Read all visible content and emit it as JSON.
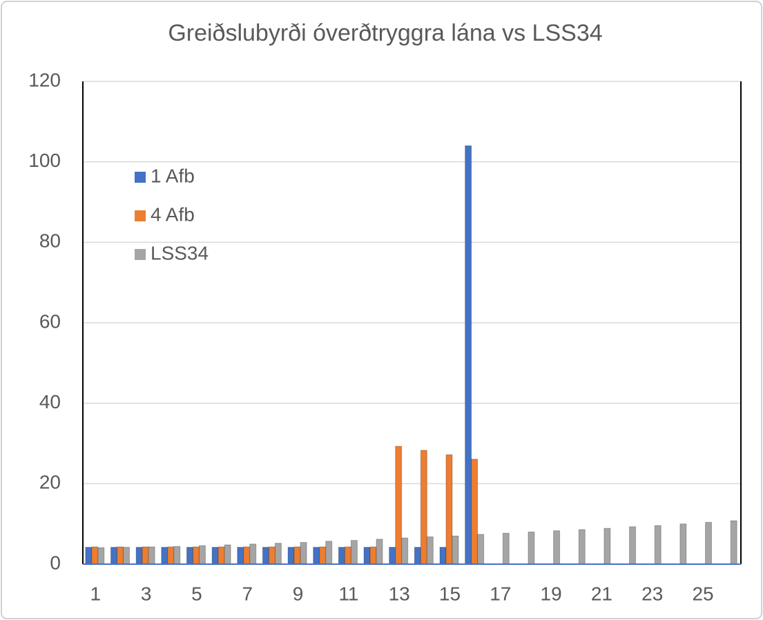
{
  "chart_data": {
    "type": "bar",
    "title": "Greiðslubyrði óverðtryggra lána vs LSS34",
    "categories": [
      "1",
      null,
      "3",
      null,
      "5",
      null,
      "7",
      null,
      "9",
      null,
      "11",
      null,
      "13",
      null,
      "15",
      null,
      "17",
      null,
      "19",
      null,
      "21",
      null,
      "23",
      null,
      "25",
      null
    ],
    "series": [
      {
        "name": "1 Afb",
        "color": "#4472c4",
        "values": [
          4.2,
          4.2,
          4.2,
          4.2,
          4.2,
          4.2,
          4.2,
          4.2,
          4.2,
          4.2,
          4.2,
          4.2,
          4.2,
          4.2,
          4.2,
          104,
          null,
          null,
          null,
          null,
          null,
          null,
          null,
          null,
          null,
          null
        ]
      },
      {
        "name": "4 Afb",
        "color": "#ed7d31",
        "values": [
          4.3,
          4.3,
          4.3,
          4.3,
          4.3,
          4.3,
          4.3,
          4.3,
          4.3,
          4.3,
          4.3,
          4.3,
          29.3,
          28.3,
          27.2,
          26.1,
          null,
          null,
          null,
          null,
          null,
          null,
          null,
          null,
          null,
          null
        ]
      },
      {
        "name": "LSS34",
        "color": "#a5a5a5",
        "values": [
          4.1,
          4.2,
          4.3,
          4.4,
          4.6,
          4.8,
          5.0,
          5.2,
          5.4,
          5.7,
          5.9,
          6.2,
          6.5,
          6.8,
          7.0,
          7.4,
          7.7,
          8.0,
          8.3,
          8.6,
          8.9,
          9.3,
          9.6,
          10.0,
          10.4,
          10.8
        ]
      }
    ],
    "ylim": [
      0,
      120
    ],
    "yticks": [
      0,
      20,
      40,
      60,
      80,
      100,
      120
    ],
    "grid": true,
    "legend": "upper left"
  }
}
